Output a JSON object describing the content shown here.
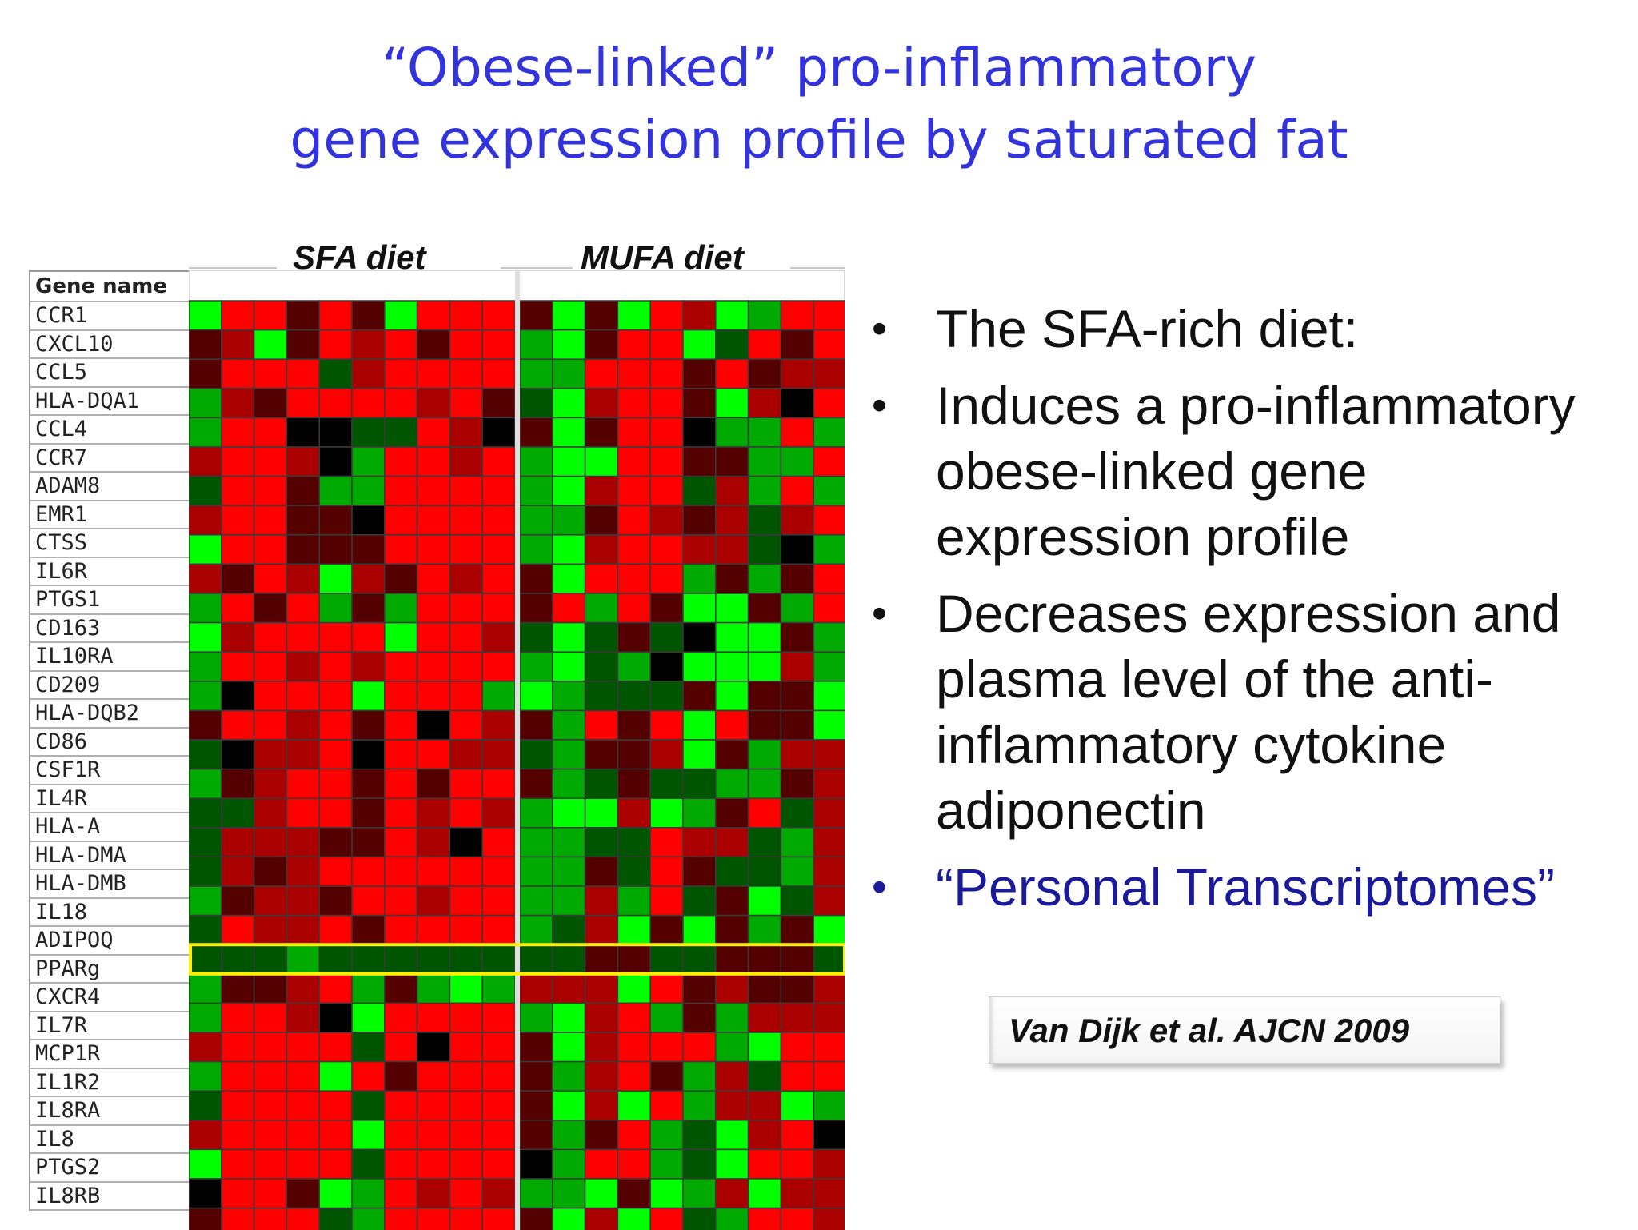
{
  "slide": {
    "title_line1": "“Obese-linked” pro-inflammatory",
    "title_line2": "gene expression profile by saturated fat",
    "title_color": "#3333dd",
    "bullets": [
      {
        "text": "The SFA-rich diet:",
        "color": "#111111"
      },
      {
        "text": "Induces a pro-inflammatory obese-linked gene expression profile",
        "color": "#111111"
      },
      {
        "text": "Decreases expression and plasma level of the anti-inflammatory cytokine adiponectin",
        "color": "#111111"
      },
      {
        "text": "“Personal Transcriptomes”",
        "color": "#1a1a9a"
      }
    ],
    "citation": "Van Dijk et al. AJCN 2009"
  },
  "chart_data": {
    "type": "heatmap",
    "title": "",
    "gene_header": "Gene name",
    "groups": [
      {
        "name": "SFA diet",
        "columns": 10
      },
      {
        "name": "MUFA diet",
        "columns": 10
      }
    ],
    "rows": [
      "CCR1",
      "CXCL10",
      "CCL5",
      "HLA-DQA1",
      "CCL4",
      "CCR7",
      "ADAM8",
      "EMR1",
      "CTSS",
      "IL6R",
      "PTGS1",
      "CD163",
      "IL10RA",
      "CD209",
      "HLA-DQB2",
      "CD86",
      "CSF1R",
      "IL4R",
      "HLA-A",
      "HLA-DMA",
      "HLA-DMB",
      "IL18",
      "ADIPOQ",
      "PPARg",
      "CXCR4",
      "IL7R",
      "MCP1R",
      "IL1R2",
      "IL8RA",
      "IL8",
      "PTGS2",
      "IL8RB"
    ],
    "highlighted_row": "ADIPOQ",
    "highlight_color": "#ffee00",
    "color_scale": {
      "high": "#ff0000",
      "mid": "#000000",
      "low": "#00ff00"
    },
    "values": [
      [
        -3,
        3,
        3,
        1,
        3,
        1,
        -3,
        3,
        3,
        3,
        1,
        -3,
        1,
        -3,
        3,
        2,
        -3,
        -2,
        3,
        3
      ],
      [
        1,
        2,
        -3,
        1,
        3,
        2,
        3,
        1,
        3,
        3,
        -2,
        -3,
        1,
        3,
        3,
        -3,
        -1,
        3,
        1,
        3
      ],
      [
        1,
        3,
        3,
        3,
        -1,
        2,
        3,
        3,
        3,
        3,
        -2,
        -2,
        3,
        3,
        3,
        1,
        3,
        1,
        2,
        2
      ],
      [
        -2,
        2,
        1,
        3,
        3,
        3,
        3,
        2,
        3,
        1,
        -1,
        -3,
        2,
        3,
        3,
        1,
        -3,
        2,
        0,
        3
      ],
      [
        -2,
        3,
        3,
        0,
        0,
        -1,
        -1,
        3,
        2,
        0,
        1,
        -3,
        1,
        3,
        3,
        0,
        -2,
        -2,
        3,
        -2
      ],
      [
        2,
        3,
        3,
        2,
        0,
        -2,
        3,
        3,
        2,
        3,
        -2,
        -3,
        -3,
        3,
        3,
        1,
        1,
        -2,
        -2,
        3
      ],
      [
        -1,
        3,
        3,
        1,
        -2,
        -2,
        3,
        3,
        3,
        3,
        -2,
        -3,
        2,
        3,
        3,
        -1,
        2,
        -2,
        3,
        -2
      ],
      [
        2,
        3,
        3,
        1,
        1,
        0,
        3,
        3,
        3,
        3,
        -2,
        -2,
        1,
        3,
        2,
        1,
        2,
        -1,
        2,
        3
      ],
      [
        -3,
        3,
        3,
        1,
        1,
        1,
        3,
        3,
        3,
        3,
        -2,
        -3,
        2,
        3,
        3,
        2,
        2,
        -1,
        0,
        -2
      ],
      [
        2,
        1,
        3,
        2,
        -3,
        2,
        1,
        3,
        2,
        3,
        1,
        -3,
        3,
        3,
        3,
        -2,
        1,
        -2,
        1,
        3
      ],
      [
        -2,
        3,
        1,
        3,
        -2,
        1,
        -2,
        3,
        3,
        3,
        1,
        3,
        -2,
        3,
        1,
        -3,
        -3,
        1,
        -2,
        3
      ],
      [
        -3,
        2,
        3,
        3,
        3,
        3,
        -3,
        3,
        3,
        2,
        -1,
        -3,
        -1,
        1,
        -1,
        0,
        -3,
        -3,
        1,
        -2
      ],
      [
        -2,
        3,
        3,
        2,
        3,
        2,
        3,
        3,
        3,
        3,
        -2,
        -3,
        -1,
        -2,
        0,
        -3,
        -3,
        -3,
        2,
        -2
      ],
      [
        -2,
        0,
        3,
        3,
        3,
        -3,
        3,
        3,
        3,
        -2,
        -3,
        -2,
        -1,
        -1,
        -1,
        1,
        -3,
        1,
        1,
        -3
      ],
      [
        1,
        3,
        3,
        2,
        3,
        1,
        3,
        0,
        3,
        2,
        1,
        -2,
        3,
        1,
        3,
        -3,
        3,
        1,
        1,
        -3
      ],
      [
        -1,
        0,
        2,
        2,
        3,
        0,
        3,
        3,
        2,
        2,
        -1,
        -2,
        1,
        1,
        2,
        -3,
        1,
        -2,
        2,
        2
      ],
      [
        -2,
        1,
        2,
        3,
        3,
        1,
        3,
        1,
        3,
        3,
        1,
        -2,
        -1,
        1,
        -1,
        -1,
        -2,
        -2,
        1,
        2
      ],
      [
        -1,
        -1,
        2,
        3,
        3,
        1,
        3,
        2,
        3,
        2,
        -2,
        -3,
        -3,
        2,
        -3,
        -2,
        1,
        3,
        -1,
        2
      ],
      [
        -1,
        2,
        2,
        2,
        1,
        1,
        3,
        2,
        0,
        3,
        -2,
        -2,
        -1,
        -1,
        3,
        2,
        2,
        -1,
        -2,
        2
      ],
      [
        -1,
        2,
        1,
        2,
        3,
        3,
        3,
        3,
        3,
        3,
        -2,
        -2,
        1,
        -1,
        3,
        1,
        -1,
        -1,
        -2,
        2
      ],
      [
        -2,
        1,
        2,
        2,
        1,
        3,
        3,
        2,
        3,
        3,
        -2,
        -2,
        2,
        -2,
        3,
        -1,
        1,
        -3,
        -1,
        2
      ],
      [
        -1,
        3,
        2,
        2,
        3,
        1,
        3,
        3,
        3,
        3,
        -2,
        -1,
        2,
        -3,
        1,
        -3,
        1,
        -2,
        1,
        -3
      ],
      [
        -1,
        -1,
        -1,
        -2,
        -1,
        -1,
        -1,
        -1,
        -1,
        -1,
        -1,
        -1,
        1,
        1,
        -1,
        -1,
        1,
        1,
        1,
        -1
      ],
      [
        -2,
        1,
        1,
        2,
        3,
        -2,
        1,
        -2,
        -3,
        -2,
        2,
        2,
        2,
        -3,
        3,
        1,
        2,
        1,
        1,
        2
      ],
      [
        -2,
        3,
        3,
        2,
        0,
        -3,
        3,
        3,
        3,
        3,
        -2,
        -3,
        2,
        3,
        -2,
        1,
        -2,
        2,
        2,
        2
      ],
      [
        2,
        3,
        3,
        3,
        3,
        -1,
        3,
        0,
        3,
        3,
        1,
        -3,
        2,
        3,
        3,
        3,
        -2,
        -3,
        3,
        3
      ],
      [
        -2,
        3,
        3,
        3,
        -3,
        3,
        1,
        3,
        3,
        3,
        1,
        -2,
        2,
        3,
        1,
        -2,
        2,
        -1,
        3,
        3
      ],
      [
        -1,
        3,
        3,
        3,
        3,
        -1,
        3,
        3,
        3,
        3,
        1,
        -3,
        2,
        -3,
        3,
        -2,
        2,
        2,
        -3,
        -2
      ],
      [
        2,
        3,
        3,
        3,
        3,
        -3,
        3,
        3,
        3,
        3,
        1,
        -2,
        1,
        3,
        -2,
        -1,
        -3,
        2,
        3,
        0
      ],
      [
        -3,
        3,
        3,
        3,
        3,
        -1,
        3,
        3,
        3,
        3,
        0,
        -2,
        3,
        3,
        -2,
        -1,
        -3,
        3,
        3,
        2
      ],
      [
        0,
        3,
        3,
        1,
        -3,
        -2,
        3,
        2,
        3,
        2,
        -2,
        -2,
        -3,
        1,
        -3,
        -2,
        2,
        -3,
        2,
        2
      ],
      [
        1,
        3,
        3,
        3,
        -1,
        -2,
        3,
        3,
        3,
        3,
        1,
        -3,
        2,
        -3,
        3,
        -1,
        -2,
        3,
        3,
        2
      ]
    ]
  }
}
